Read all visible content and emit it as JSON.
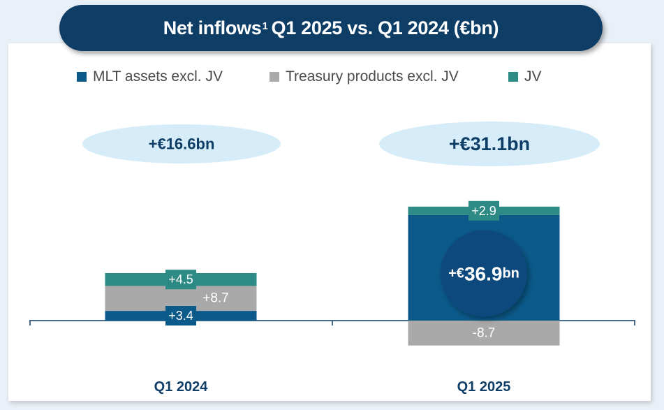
{
  "title": {
    "text_main": "Net inflows",
    "footnote_mark": "1",
    "text_rest": "Q1 2025 vs. Q1 2024 (€bn)"
  },
  "colors": {
    "mlt": "#0b5a8a",
    "treasury": "#a9a9a9",
    "jv": "#2e8a84",
    "title_bg": "#0e3d66",
    "total_ellipse": "#d6ecf8",
    "dark_circle": "#0d4a7c",
    "axis": "#0e3d66"
  },
  "legend": [
    {
      "label": "MLT assets excl. JV",
      "color": "#0b5a8a"
    },
    {
      "label": "Treasury products excl. JV",
      "color": "#a9a9a9"
    },
    {
      "label": "JV",
      "color": "#2e8a84"
    }
  ],
  "chart_data": {
    "type": "bar",
    "stacked": true,
    "categories": [
      "Q1 2024",
      "Q1 2025"
    ],
    "series": [
      {
        "name": "MLT assets excl. JV",
        "values": [
          3.4,
          36.9
        ]
      },
      {
        "name": "Treasury products excl. JV",
        "values": [
          8.7,
          -8.7
        ]
      },
      {
        "name": "JV",
        "values": [
          4.5,
          2.9
        ]
      }
    ],
    "data_labels": [
      [
        "+3.4",
        "+36.9"
      ],
      [
        "+8.7",
        "-8.7"
      ],
      [
        "+4.5",
        "+2.9"
      ]
    ],
    "mlt_highlight": {
      "prefix": "+€",
      "value": "36.9",
      "unit": "bn"
    },
    "totals": [
      {
        "value": 16.6,
        "label": "+€16.6bn"
      },
      {
        "value": 31.1,
        "label": "+€31.1bn"
      }
    ],
    "title": "Net inflows Q1 2025 vs. Q1 2024 (€bn)",
    "ylim": [
      -8.7,
      39.8
    ],
    "grid": false,
    "legend_position": "top"
  }
}
